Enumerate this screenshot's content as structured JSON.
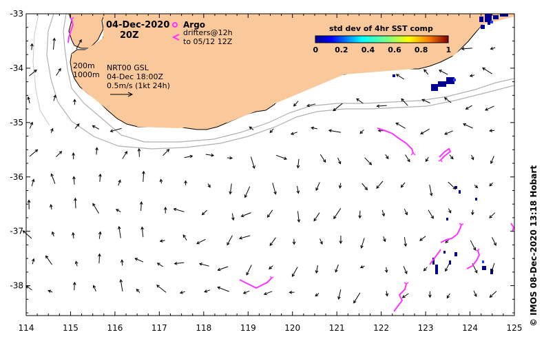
{
  "title": {
    "date": "04-Dec-2020",
    "time": "20Z"
  },
  "legend": {
    "argo_label": "Argo",
    "drifters_line1": "drifters@12h",
    "drifters_line2": "to 05/12 12Z",
    "isobath_200": "200m",
    "isobath_1000": "1000m",
    "product_line1": "NRT00 GSL",
    "product_line2": "04-Dec 18:00Z",
    "vector_scale": "0.5m/s (1kt 24h)"
  },
  "colorbar": {
    "title": "std dev of 4hr SST comp",
    "ticks": [
      "0",
      "0.2",
      "0.4",
      "0.6",
      "0.8",
      "1"
    ],
    "range": [
      0,
      1
    ]
  },
  "axes": {
    "lon_ticks": [
      "114",
      "115",
      "116",
      "117",
      "118",
      "119",
      "120",
      "121",
      "122",
      "123",
      "124",
      "125"
    ],
    "lat_ticks": [
      "-33",
      "-34",
      "-35",
      "-36",
      "-37",
      "-38"
    ],
    "lon_range": [
      114,
      125
    ],
    "lat_range": [
      -38.55,
      -33
    ]
  },
  "credit": "© IMOS 08-Dec-2020 13:18 Hobart",
  "colors": {
    "land": "#f9c89b",
    "argo": "#ff33ff",
    "drifter": "#ff33ff",
    "isobath": "#b0b0b0",
    "sst_low": "#00008f"
  }
}
